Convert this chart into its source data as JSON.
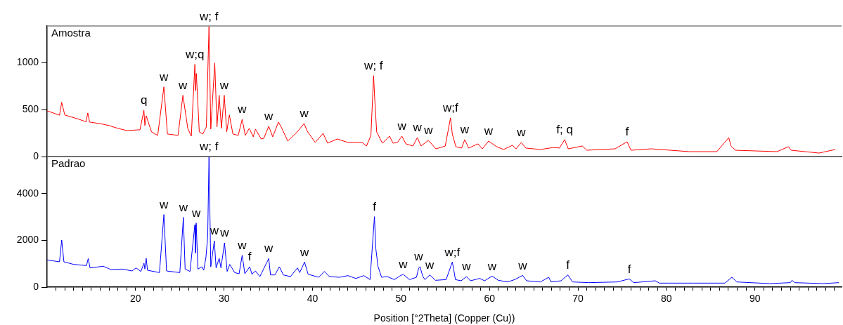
{
  "chart_data": [
    {
      "type": "line",
      "tick_labels": "y",
      "xlim": [
        10,
        99.8
      ],
      "ylim": [
        0,
        1390
      ],
      "yticks": [
        0,
        500,
        1000
      ],
      "x": [
        10,
        11.4,
        11.65,
        12,
        13.5,
        14.4,
        14.6,
        14.8,
        16,
        17,
        18,
        19,
        20.5,
        20.94,
        21.05,
        21.2,
        21.8,
        22.5,
        23.2,
        23.6,
        24.8,
        25.35,
        25.9,
        26.3,
        26.7,
        26.78,
        26.87,
        27.2,
        27.6,
        28.0,
        28.3,
        28.5,
        28.95,
        29.2,
        29.45,
        29.7,
        30.02,
        30.3,
        30.6,
        31.0,
        31.6,
        32.05,
        32.4,
        32.85,
        33.3,
        33.55,
        34.2,
        34.5,
        35.05,
        35.5,
        36.15,
        36.5,
        37.2,
        38.2,
        39.05,
        39.4,
        40.3,
        41.2,
        41.7,
        42.8,
        44.0,
        45.6,
        46.1,
        46.6,
        46.9,
        47.0,
        47.25,
        47.9,
        48.7,
        49.1,
        49.6,
        50.1,
        50.55,
        51.35,
        51.85,
        52.25,
        53.1,
        53.95,
        55.0,
        55.6,
        55.8,
        56.2,
        56.85,
        57.2,
        57.65,
        58.7,
        59.2,
        59.9,
        60.8,
        61.6,
        62.6,
        63.0,
        63.6,
        64.1,
        65.75,
        67.3,
        67.9,
        68.5,
        68.9,
        70.5,
        71.0,
        74.2,
        75.55,
        76.0,
        78.3,
        82.6,
        85.7,
        87.05,
        87.3,
        87.8,
        92.5,
        93.8,
        94.1,
        97.25,
        99.1
      ],
      "series": [
        {
          "name": "Amostra",
          "color": "#ff0000",
          "values": [
            487,
            440,
            577,
            442,
            400,
            370,
            464,
            367,
            350,
            330,
            300,
            277,
            285,
            494,
            330,
            434,
            262,
            225,
            742,
            240,
            225,
            652,
            300,
            217,
            981,
            700,
            884,
            262,
            240,
            315,
            1385,
            292,
            996,
            315,
            652,
            300,
            652,
            262,
            442,
            240,
            225,
            397,
            225,
            300,
            210,
            292,
            187,
            195,
            322,
            210,
            367,
            307,
            165,
            255,
            352,
            270,
            150,
            247,
            142,
            187,
            150,
            150,
            112,
            225,
            861,
            667,
            262,
            142,
            217,
            142,
            150,
            217,
            135,
            112,
            202,
            112,
            172,
            82,
            112,
            412,
            240,
            105,
            90,
            180,
            90,
            135,
            82,
            165,
            105,
            75,
            120,
            82,
            150,
            90,
            75,
            97,
            90,
            180,
            82,
            112,
            67,
            82,
            157,
            67,
            82,
            52,
            52,
            202,
            112,
            67,
            52,
            105,
            67,
            37,
            75
          ]
        }
      ],
      "annotations": [
        {
          "text": "q",
          "x": 20.94,
          "y": 494
        },
        {
          "text": "w",
          "x": 23.2,
          "y": 742
        },
        {
          "text": "w",
          "x": 25.35,
          "y": 652
        },
        {
          "text": "w;q",
          "x": 26.7,
          "y": 981
        },
        {
          "text": "w; f",
          "x": 28.3,
          "y": 1385
        },
        {
          "text": "w",
          "x": 30.02,
          "y": 652
        },
        {
          "text": "w",
          "x": 32.05,
          "y": 397
        },
        {
          "text": "w",
          "x": 35.05,
          "y": 322
        },
        {
          "text": "w",
          "x": 39.05,
          "y": 352
        },
        {
          "text": "w; f",
          "x": 46.9,
          "y": 861
        },
        {
          "text": "w",
          "x": 50.1,
          "y": 217
        },
        {
          "text": "w",
          "x": 51.85,
          "y": 202
        },
        {
          "text": "w",
          "x": 53.1,
          "y": 172
        },
        {
          "text": "w;f",
          "x": 55.6,
          "y": 412
        },
        {
          "text": "w",
          "x": 57.2,
          "y": 180
        },
        {
          "text": "w",
          "x": 59.9,
          "y": 165
        },
        {
          "text": "w",
          "x": 63.6,
          "y": 150
        },
        {
          "text": "f; q",
          "x": 68.5,
          "y": 180
        },
        {
          "text": "f",
          "x": 75.55,
          "y": 157
        }
      ]
    },
    {
      "type": "line",
      "xlabel": "Position [°2Theta] (Copper (Cu))",
      "xlim": [
        10,
        99.8
      ],
      "ylim": [
        0,
        5580
      ],
      "yticks": [
        0,
        2000,
        4000
      ],
      "xticks": [
        {
          "value": 11,
          "label": null
        },
        {
          "value": 12,
          "label": null
        },
        {
          "value": 13,
          "label": null
        },
        {
          "value": 14,
          "label": null
        },
        {
          "value": 15,
          "label": null
        },
        {
          "value": 16,
          "label": null
        },
        {
          "value": 17,
          "label": null
        },
        {
          "value": 18,
          "label": null
        },
        {
          "value": 19,
          "label": null
        },
        20,
        {
          "value": 21,
          "label": null
        },
        {
          "value": 22,
          "label": null
        },
        {
          "value": 23,
          "label": null
        },
        {
          "value": 24,
          "label": null
        },
        {
          "value": 25,
          "label": null
        },
        {
          "value": 26,
          "label": null
        },
        {
          "value": 27,
          "label": null
        },
        {
          "value": 28,
          "label": null
        },
        {
          "value": 29,
          "label": null
        },
        30,
        {
          "value": 31,
          "label": null
        },
        {
          "value": 32,
          "label": null
        },
        {
          "value": 33,
          "label": null
        },
        {
          "value": 34,
          "label": null
        },
        {
          "value": 35,
          "label": null
        },
        {
          "value": 36,
          "label": null
        },
        {
          "value": 37,
          "label": null
        },
        {
          "value": 38,
          "label": null
        },
        {
          "value": 39,
          "label": null
        },
        40,
        {
          "value": 41,
          "label": null
        },
        {
          "value": 42,
          "label": null
        },
        {
          "value": 43,
          "label": null
        },
        {
          "value": 44,
          "label": null
        },
        {
          "value": 45,
          "label": null
        },
        {
          "value": 46,
          "label": null
        },
        {
          "value": 47,
          "label": null
        },
        {
          "value": 48,
          "label": null
        },
        {
          "value": 49,
          "label": null
        },
        50,
        {
          "value": 51,
          "label": null
        },
        {
          "value": 52,
          "label": null
        },
        {
          "value": 53,
          "label": null
        },
        {
          "value": 54,
          "label": null
        },
        {
          "value": 55,
          "label": null
        },
        {
          "value": 56,
          "label": null
        },
        {
          "value": 57,
          "label": null
        },
        {
          "value": 58,
          "label": null
        },
        {
          "value": 59,
          "label": null
        },
        60,
        {
          "value": 61,
          "label": null
        },
        {
          "value": 62,
          "label": null
        },
        {
          "value": 63,
          "label": null
        },
        {
          "value": 64,
          "label": null
        },
        {
          "value": 65,
          "label": null
        },
        {
          "value": 66,
          "label": null
        },
        {
          "value": 67,
          "label": null
        },
        {
          "value": 68,
          "label": null
        },
        {
          "value": 69,
          "label": null
        },
        70,
        {
          "value": 71,
          "label": null
        },
        {
          "value": 72,
          "label": null
        },
        {
          "value": 73,
          "label": null
        },
        {
          "value": 74,
          "label": null
        },
        {
          "value": 75,
          "label": null
        },
        {
          "value": 76,
          "label": null
        },
        {
          "value": 77,
          "label": null
        },
        {
          "value": 78,
          "label": null
        },
        {
          "value": 79,
          "label": null
        },
        80,
        {
          "value": 81,
          "label": null
        },
        {
          "value": 82,
          "label": null
        },
        {
          "value": 83,
          "label": null
        },
        {
          "value": 84,
          "label": null
        },
        {
          "value": 85,
          "label": null
        },
        {
          "value": 86,
          "label": null
        },
        {
          "value": 87,
          "label": null
        },
        {
          "value": 88,
          "label": null
        },
        {
          "value": 89,
          "label": null
        },
        90,
        {
          "value": 91,
          "label": null
        },
        {
          "value": 92,
          "label": null
        },
        {
          "value": 93,
          "label": null
        },
        {
          "value": 94,
          "label": null
        },
        {
          "value": 95,
          "label": null
        },
        {
          "value": 96,
          "label": null
        },
        {
          "value": 97,
          "label": null
        },
        {
          "value": 98,
          "label": null
        },
        {
          "value": 99,
          "label": null
        }
      ],
      "x": [
        10,
        11.4,
        11.65,
        11.9,
        13.0,
        14.45,
        14.65,
        14.85,
        16.35,
        17.2,
        18.5,
        19.6,
        20.05,
        20.6,
        20.95,
        21.05,
        21.2,
        21.35,
        22.7,
        23.2,
        23.5,
        25.0,
        25.4,
        25.6,
        26.15,
        26.7,
        26.75,
        26.85,
        27.05,
        27.5,
        27.7,
        27.95,
        28.15,
        28.3,
        28.5,
        28.9,
        29.1,
        29.45,
        29.65,
        30.05,
        30.35,
        30.65,
        31.2,
        31.7,
        32.05,
        32.35,
        32.9,
        33.15,
        33.55,
        34.05,
        35.05,
        35.25,
        35.75,
        36.25,
        36.7,
        37.5,
        38.3,
        38.55,
        39.1,
        39.5,
        40.7,
        41.35,
        41.9,
        43.05,
        44.0,
        44.9,
        45.8,
        46.5,
        47.0,
        47.15,
        47.4,
        47.8,
        48.45,
        49.25,
        49.85,
        50.25,
        50.95,
        51.75,
        52.0,
        52.15,
        52.45,
        52.7,
        53.25,
        53.9,
        55.1,
        55.8,
        55.95,
        56.15,
        56.8,
        57.4,
        57.85,
        58.9,
        59.45,
        60.3,
        61.0,
        62.05,
        62.85,
        63.75,
        64.2,
        65.75,
        66.7,
        66.95,
        68.1,
        68.85,
        69.4,
        71.25,
        74.45,
        75.8,
        76.3,
        78.75,
        79.2,
        82.9,
        86.6,
        87.4,
        87.95,
        91.65,
        94.0,
        94.2,
        94.5,
        97.7,
        99.5
      ],
      "series": [
        {
          "name": "Padrao",
          "color": "#0000ff",
          "values": [
            1160,
            1080,
            2010,
            1080,
            970,
            920,
            1220,
            820,
            890,
            750,
            770,
            690,
            820,
            670,
            1020,
            770,
            1230,
            720,
            620,
            3100,
            690,
            620,
            2980,
            770,
            670,
            2660,
            1460,
            2740,
            770,
            870,
            720,
            1260,
            2160,
            5580,
            870,
            1980,
            820,
            1230,
            820,
            1890,
            670,
            970,
            620,
            570,
            1360,
            570,
            870,
            550,
            690,
            450,
            1220,
            520,
            520,
            870,
            520,
            450,
            820,
            620,
            1070,
            550,
            420,
            670,
            450,
            420,
            490,
            370,
            490,
            320,
            3010,
            1660,
            890,
            420,
            450,
            320,
            470,
            550,
            320,
            420,
            820,
            870,
            470,
            320,
            520,
            290,
            320,
            1070,
            770,
            320,
            270,
            450,
            270,
            370,
            270,
            470,
            290,
            220,
            320,
            500,
            270,
            220,
            420,
            220,
            270,
            520,
            220,
            190,
            220,
            350,
            190,
            270,
            170,
            170,
            170,
            420,
            220,
            150,
            190,
            290,
            190,
            150,
            190
          ]
        }
      ],
      "annotations": [
        {
          "text": "w",
          "x": 23.2,
          "y": 3104
        },
        {
          "text": "w",
          "x": 25.4,
          "y": 2975
        },
        {
          "text": "w",
          "x": 26.85,
          "y": 2737
        },
        {
          "text": "w; f",
          "x": 28.3,
          "y": 5580
        },
        {
          "text": "w",
          "x": 28.9,
          "y": 1980
        },
        {
          "text": "w",
          "x": 30.05,
          "y": 1891
        },
        {
          "text": "w",
          "x": 32.05,
          "y": 1363
        },
        {
          "text": "f",
          "x": 32.9,
          "y": 866
        },
        {
          "text": "w",
          "x": 35.05,
          "y": 1224
        },
        {
          "text": "w",
          "x": 39.1,
          "y": 1065
        },
        {
          "text": "f",
          "x": 47.0,
          "y": 3005
        },
        {
          "text": "w",
          "x": 50.25,
          "y": 547
        },
        {
          "text": "w",
          "x": 52.0,
          "y": 866
        },
        {
          "text": "w",
          "x": 53.25,
          "y": 518
        },
        {
          "text": "w;f",
          "x": 55.8,
          "y": 1065
        },
        {
          "text": "w",
          "x": 57.4,
          "y": 448
        },
        {
          "text": "w",
          "x": 60.3,
          "y": 468
        },
        {
          "text": "w",
          "x": 63.75,
          "y": 498
        },
        {
          "text": "f",
          "x": 68.85,
          "y": 518
        },
        {
          "text": "f",
          "x": 75.8,
          "y": 348
        }
      ]
    }
  ]
}
